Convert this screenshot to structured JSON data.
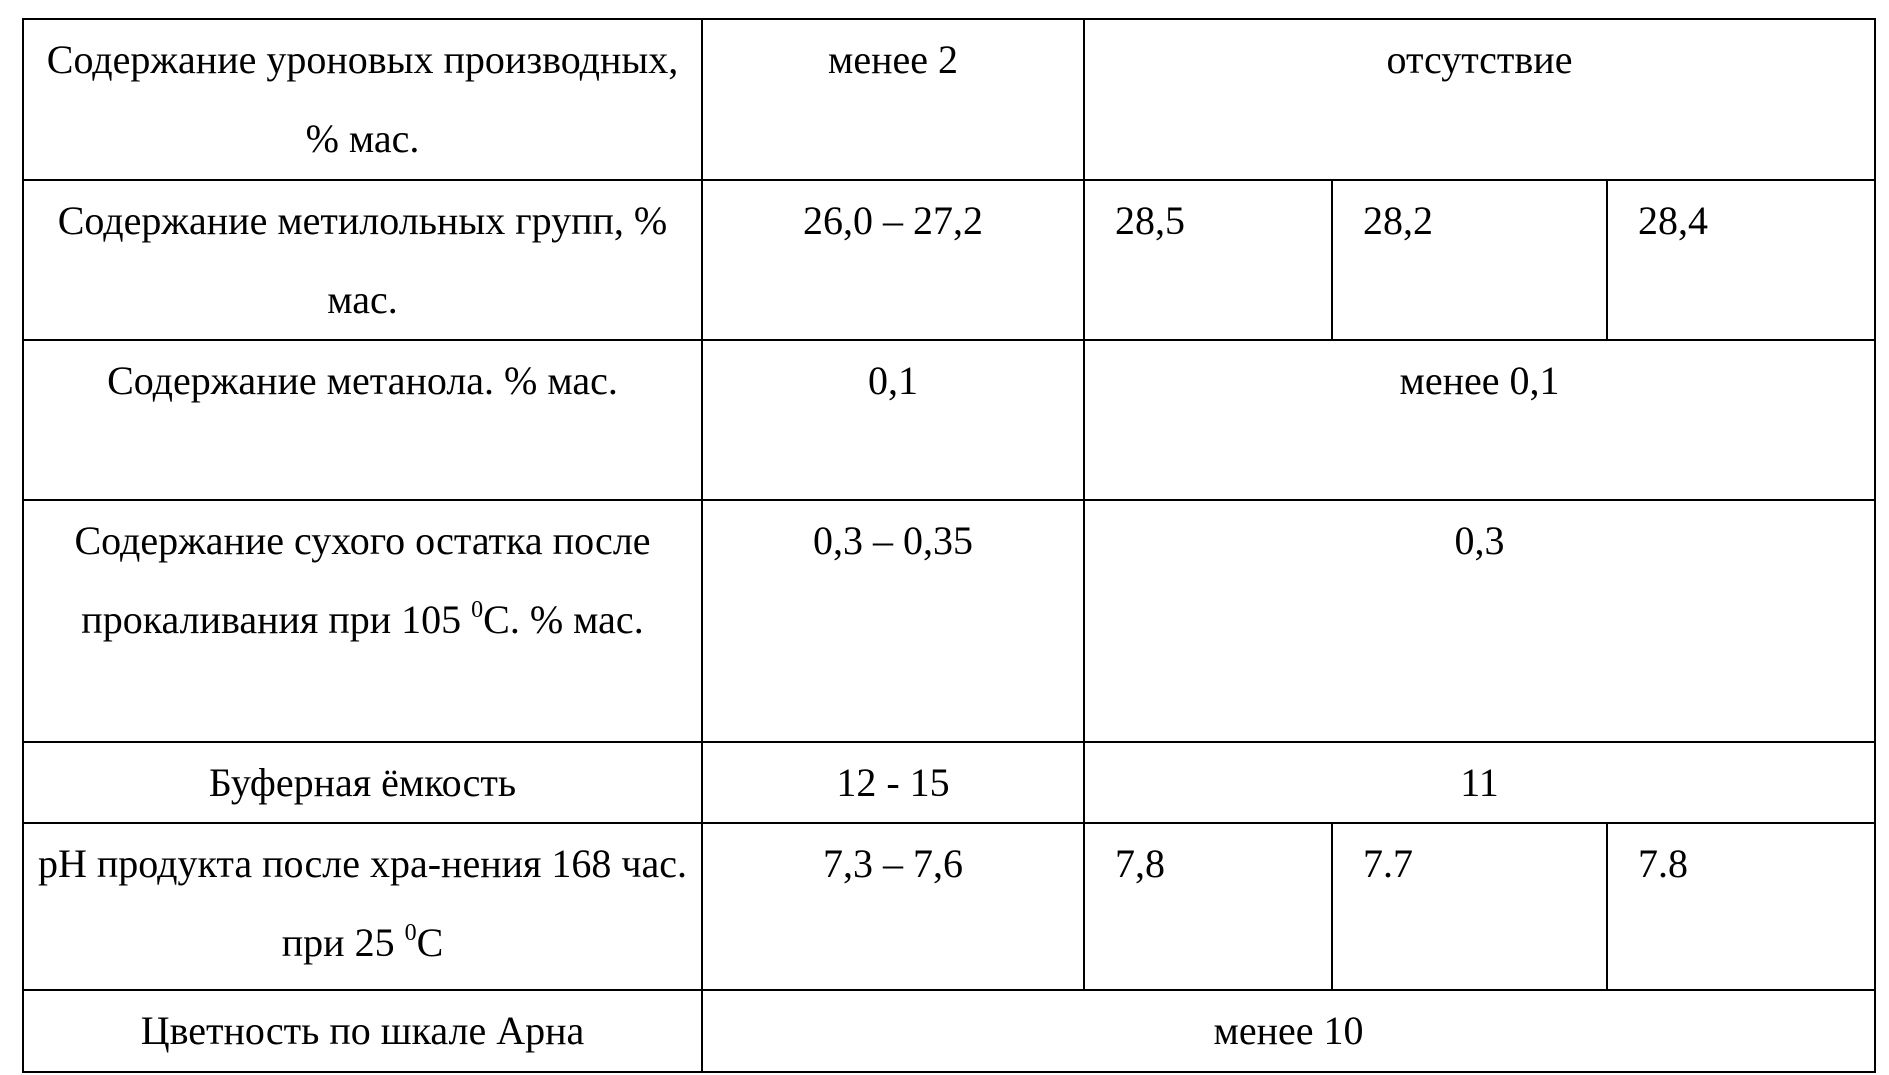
{
  "rows": [
    {
      "label": "Содержание уроновых производных, % мас.",
      "range": "менее 2",
      "merged": "отсутствие"
    },
    {
      "label": "Содержание метилольных групп,  % мас.",
      "range": "26,0 – 27,2",
      "values": [
        "28,5",
        "28,2",
        "28,4"
      ]
    },
    {
      "label": "Содержание метанола. % мас.",
      "range": "0,1",
      "merged": "менее 0,1"
    },
    {
      "label_pre": "Содержание сухого остатка после прокаливания при 105 ",
      "label_sup": "0",
      "label_post": "С. % мас.",
      "range": "0,3 – 0,35",
      "merged": "0,3"
    },
    {
      "label": "Буферная ёмкость",
      "range": "12 - 15",
      "merged": "11"
    },
    {
      "label_pre": "рН продукта  после хра-нения   168 час. при 25 ",
      "label_sup": "0",
      "label_post": "С",
      "range": "7,3 – 7,6",
      "values": [
        "7,8",
        "7.7",
        "7.8"
      ]
    },
    {
      "label": "Цветность по шкале Арна",
      "merged_all": "менее 10"
    }
  ]
}
